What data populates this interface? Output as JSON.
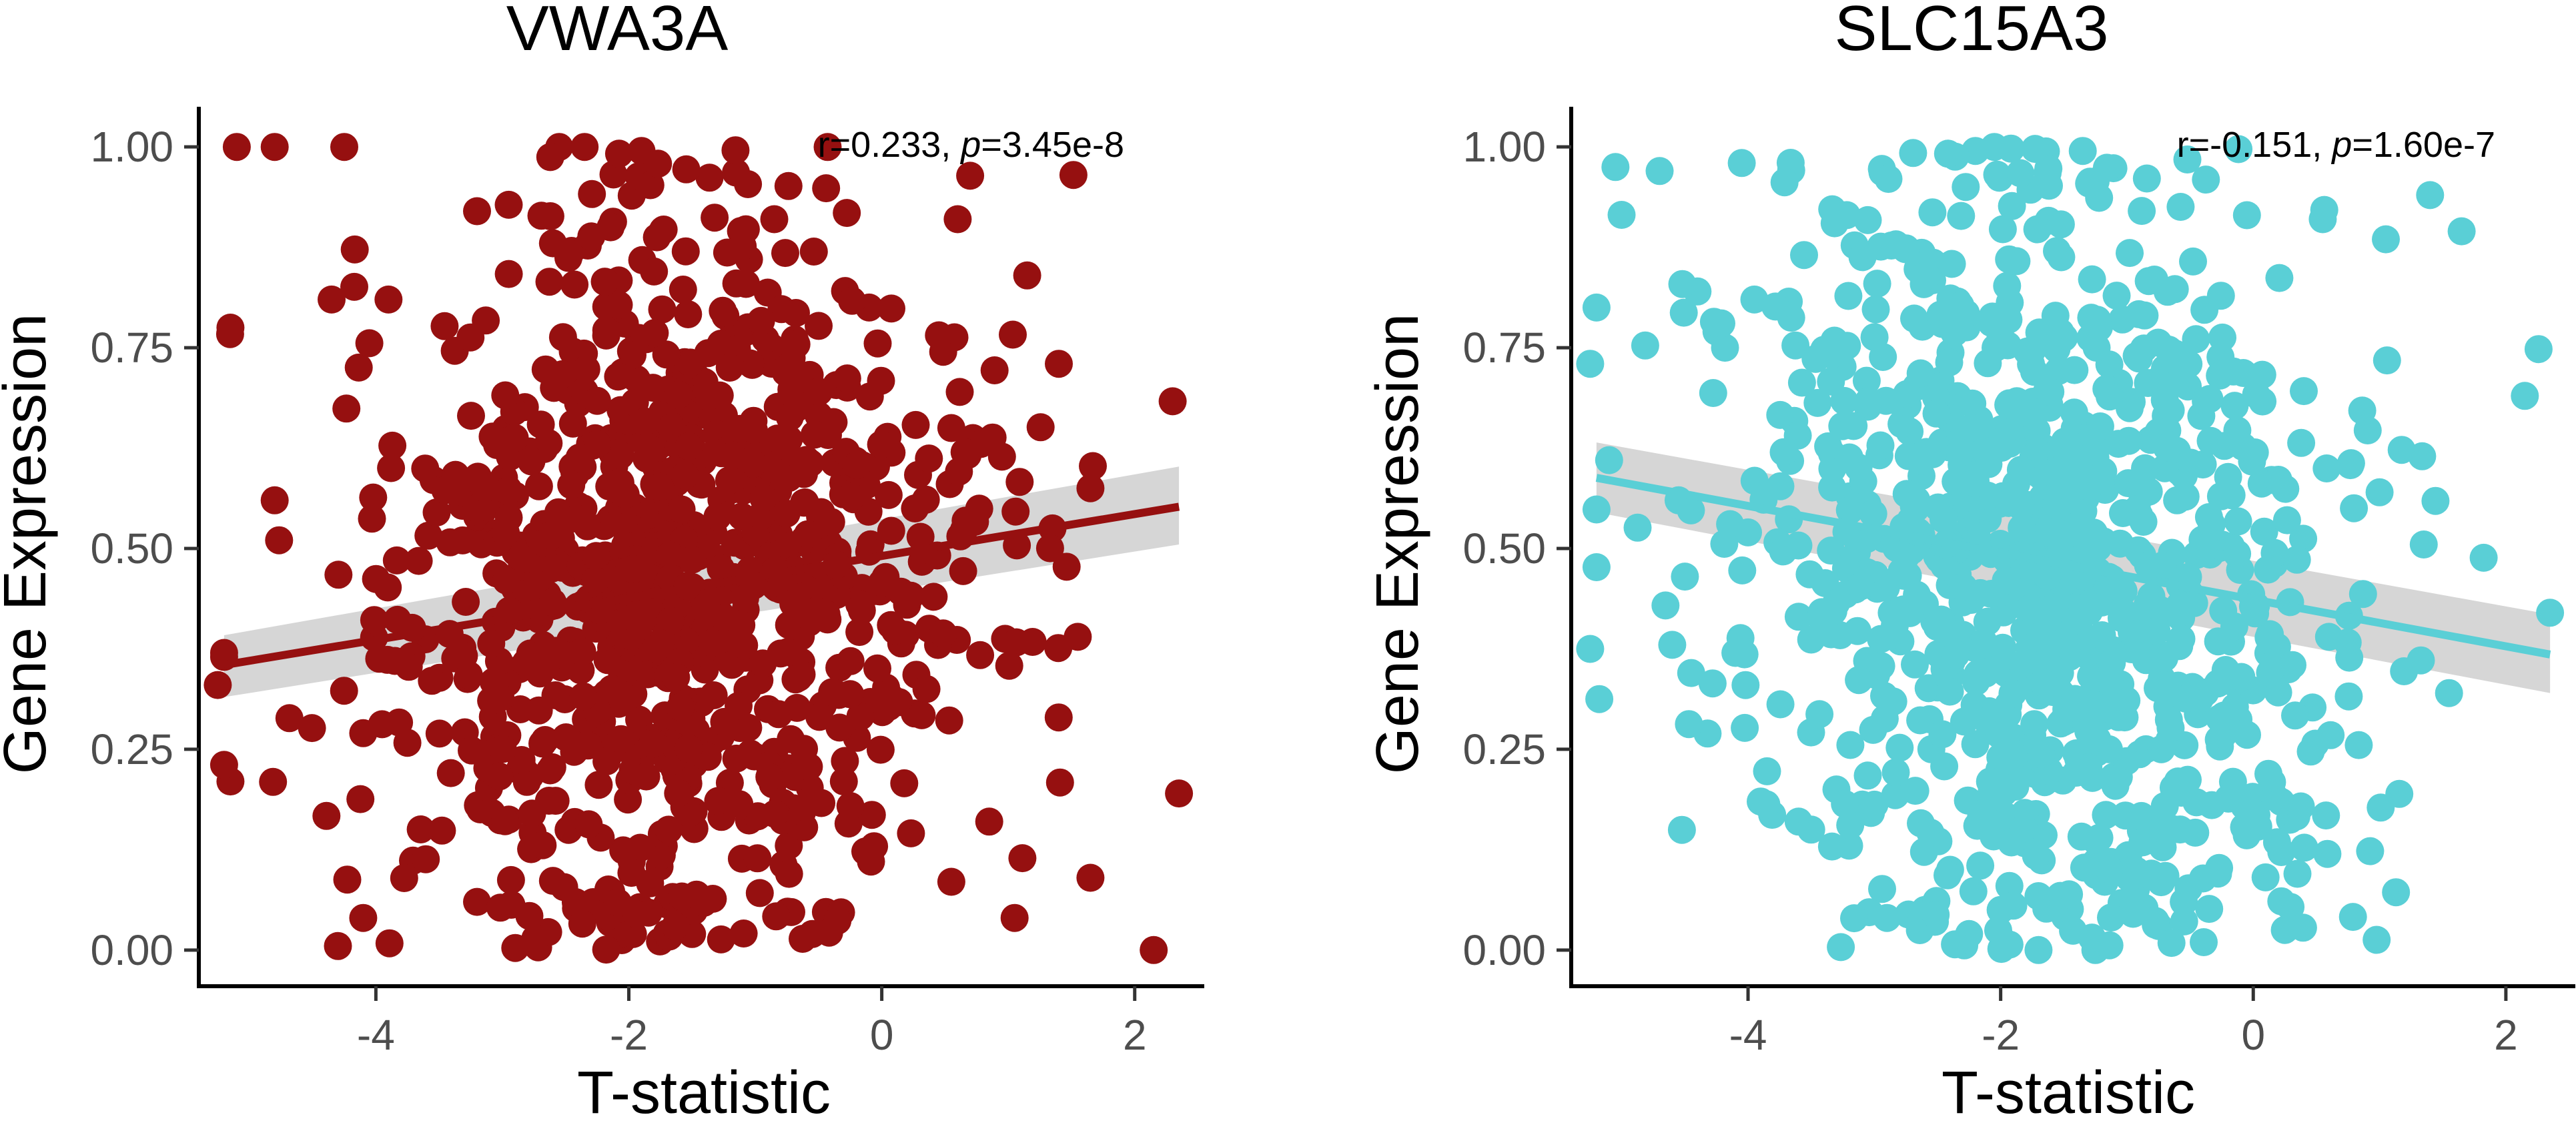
{
  "chart_data": [
    {
      "type": "scatter",
      "title": "VWA3A",
      "xlabel": "T-statistic",
      "ylabel": "Gene Expression",
      "xlim": [
        -5.4,
        2.55
      ],
      "ylim": [
        -0.045,
        1.05
      ],
      "xticks": [
        -4,
        -2,
        0,
        2
      ],
      "xtick_labels": [
        "-4",
        "-2",
        "0",
        "2"
      ],
      "yticks": [
        0,
        0.25,
        0.5,
        0.75,
        1.0
      ],
      "ytick_labels": [
        "0.00",
        "0.25",
        "0.50",
        "0.75",
        "1.00"
      ],
      "grid": false,
      "legend": "none",
      "point_color": "#961010",
      "n_points": 1000,
      "sample_points": {
        "x": [
          -5.1,
          -4.8,
          -4.25,
          -2.55,
          -2.35,
          -1.9,
          -5.15,
          -3.2,
          -0.85,
          0.6,
          1.15,
          1.4,
          -1.15,
          -1.55,
          -2.6,
          -4.35,
          -3.9,
          -1.05,
          -5.2,
          -4.8,
          -1.8,
          -0.1,
          0.55,
          -1.0,
          -2.0,
          -2.9,
          -3.85,
          1.65,
          1.35,
          0.2,
          -4.1,
          1.55,
          2.35,
          -0.3,
          0.85,
          -5.15,
          -5.25,
          -4.1,
          -4.3,
          -3.2,
          -0.55,
          0.55,
          1.05,
          2.15,
          1.65,
          -1.5,
          -2.2,
          -0.9
        ],
        "y": [
          1.0,
          1.0,
          1.0,
          1.0,
          1.0,
          0.995,
          0.775,
          0.92,
          0.91,
          0.91,
          0.84,
          0.73,
          0.83,
          0.87,
          0.88,
          0.81,
          0.81,
          0.86,
          0.37,
          0.56,
          0.58,
          0.8,
          0.65,
          0.6,
          0.55,
          0.45,
          0.36,
          0.575,
          0.525,
          0.43,
          0.27,
          0.39,
          0.195,
          0.21,
          0.16,
          0.21,
          0.33,
          0.04,
          0.005,
          0.06,
          0.02,
          0.085,
          0.04,
          0.0,
          0.09,
          0.02,
          0.05,
          0.3
        ]
      },
      "regression": {
        "x_start": -5.2,
        "x_end": 2.35,
        "y_start": 0.355,
        "y_end": 0.552,
        "color": "#961010"
      },
      "ci_band": {
        "start": [
          0.315,
          0.392
        ],
        "end": [
          0.505,
          0.602
        ],
        "color": "#bdbdbd"
      },
      "annotation": {
        "r_text": "r=0.233, ",
        "p_symbol": "p",
        "p_text": "=3.45e-8"
      }
    },
    {
      "type": "scatter",
      "title": "SLC15A3",
      "xlabel": "T-statistic",
      "ylabel": "Gene Expression",
      "xlim": [
        -5.4,
        2.55
      ],
      "ylim": [
        -0.045,
        1.05
      ],
      "xticks": [
        -4,
        -2,
        0,
        2
      ],
      "xtick_labels": [
        "-4",
        "-2",
        "0",
        "2"
      ],
      "yticks": [
        0,
        0.25,
        0.5,
        0.75,
        1.0
      ],
      "ytick_labels": [
        "0.00",
        "0.25",
        "0.50",
        "0.75",
        "1.00"
      ],
      "grid": false,
      "legend": "none",
      "point_color": "#5acfd6",
      "n_points": 1000,
      "sample_points": {
        "x": [
          -5.05,
          -4.7,
          -4.05,
          -2.05,
          -2.2,
          -1.35,
          -0.05,
          -5.25,
          -5.2,
          -4.4,
          -4.25,
          -3.95,
          2.15,
          1.65,
          1.4,
          1.05,
          0.55,
          -4.55,
          -4.0,
          -5.1,
          -5.25,
          -4.5,
          -4.1,
          1.0,
          1.35,
          2.35,
          1.55,
          0.6,
          -4.45,
          -4.6,
          -3.9,
          -3.5,
          -3.2,
          -2.9,
          -2.6,
          -2.25,
          -1.7,
          -1.25,
          -0.75,
          -0.55,
          0.25,
          0.35,
          -3.3,
          -3.6,
          -2.4,
          -1.05,
          -2.0,
          -0.85
        ],
        "y": [
          0.975,
          0.97,
          0.98,
          1.0,
          0.995,
          0.995,
          0.915,
          0.73,
          0.8,
          0.82,
          0.77,
          0.81,
          0.69,
          0.895,
          0.94,
          0.885,
          0.91,
          0.56,
          0.52,
          0.61,
          0.375,
          0.465,
          0.37,
          0.57,
          0.505,
          0.42,
          0.32,
          0.39,
          0.345,
          0.38,
          0.185,
          0.15,
          0.13,
          0.04,
          0.05,
          0.02,
          0.0,
          0.0,
          0.03,
          0.06,
          0.025,
          0.095,
          0.2,
          0.16,
          0.1,
          0.11,
          0.05,
          0.25
        ]
      },
      "regression": {
        "x_start": -5.2,
        "x_end": 2.35,
        "y_start": 0.588,
        "y_end": 0.368,
        "color": "#5acfd6"
      },
      "ci_band": {
        "start": [
          0.545,
          0.632
        ],
        "end": [
          0.32,
          0.418
        ],
        "color": "#bdbdbd"
      },
      "annotation": {
        "r_text": "r=-0.151, ",
        "p_symbol": "p",
        "p_text": "=1.60e-7"
      }
    }
  ]
}
